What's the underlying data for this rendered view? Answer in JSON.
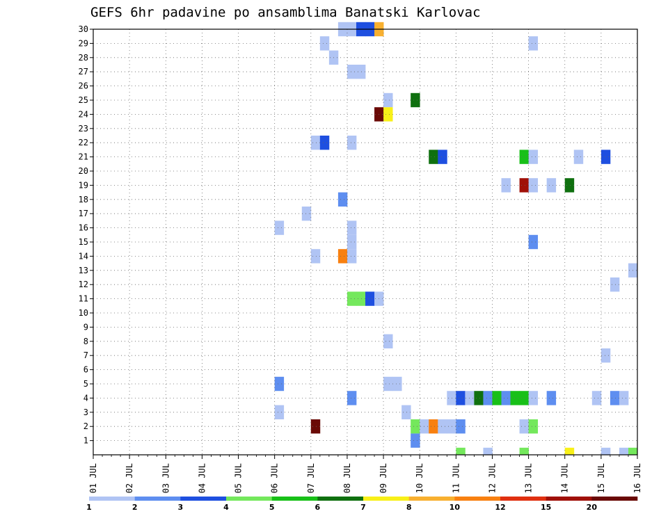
{
  "chart_data": {
    "type": "heatmap",
    "title": "GEFS 6hr padavine po ansamblima Banatski Karlovac",
    "x_tick_labels": [
      "01 JUL",
      "02 JUL",
      "03 JUL",
      "04 JUL",
      "05 JUL",
      "06 JUL",
      "07 JUL",
      "08 JUL",
      "09 JUL",
      "10 JUL",
      "11 JUL",
      "12 JUL",
      "13 JUL",
      "14 JUL",
      "15 JUL",
      "16 JUL"
    ],
    "y_tick_labels": [
      "1",
      "2",
      "3",
      "4",
      "5",
      "6",
      "7",
      "8",
      "9",
      "10",
      "11",
      "12",
      "13",
      "14",
      "15",
      "16",
      "17",
      "18",
      "19",
      "20",
      "21",
      "22",
      "23",
      "24",
      "25",
      "26",
      "27",
      "28",
      "29",
      "30"
    ],
    "x_unit": "6h steps from 01 JUL 00z",
    "grid": true,
    "legend": {
      "position": "bottom",
      "labels": [
        "1",
        "2",
        "3",
        "4",
        "5",
        "6",
        "7",
        "8",
        "10",
        "12",
        "15",
        "20"
      ],
      "colors": [
        "#b0c4f4",
        "#5e8ef0",
        "#1e4fe0",
        "#74e85c",
        "#18c018",
        "#0f700f",
        "#f8f018",
        "#f8b030",
        "#f88010",
        "#e03010",
        "#a01008",
        "#6a0a06"
      ]
    },
    "cells": [
      {
        "m": 30,
        "t": [
          [
            27,
            1
          ],
          [
            28,
            1
          ],
          [
            29,
            3
          ],
          [
            30,
            3
          ],
          [
            31,
            8
          ]
        ]
      },
      {
        "m": 29,
        "t": [
          [
            25,
            1
          ],
          [
            48,
            1
          ]
        ]
      },
      {
        "m": 28,
        "t": [
          [
            26,
            1
          ]
        ]
      },
      {
        "m": 27,
        "t": [
          [
            28,
            1
          ],
          [
            29,
            1
          ]
        ]
      },
      {
        "m": 25,
        "t": [
          [
            32,
            1
          ],
          [
            35,
            6
          ]
        ]
      },
      {
        "m": 24,
        "t": [
          [
            31,
            12
          ],
          [
            32,
            7
          ]
        ]
      },
      {
        "m": 22,
        "t": [
          [
            24,
            1
          ],
          [
            25,
            3
          ],
          [
            28,
            1
          ]
        ]
      },
      {
        "m": 21,
        "t": [
          [
            37,
            6
          ],
          [
            38,
            3
          ],
          [
            47,
            5
          ],
          [
            48,
            1
          ],
          [
            53,
            1
          ],
          [
            56,
            3
          ]
        ]
      },
      {
        "m": 19,
        "t": [
          [
            45,
            1
          ],
          [
            47,
            11
          ],
          [
            48,
            1
          ],
          [
            50,
            1
          ],
          [
            52,
            6
          ]
        ]
      },
      {
        "m": 18,
        "t": [
          [
            27,
            2
          ]
        ]
      },
      {
        "m": 17,
        "t": [
          [
            23,
            1
          ]
        ]
      },
      {
        "m": 16,
        "t": [
          [
            20,
            1
          ],
          [
            28,
            1
          ]
        ]
      },
      {
        "m": 15,
        "t": [
          [
            28,
            1
          ],
          [
            48,
            2
          ]
        ]
      },
      {
        "m": 14,
        "t": [
          [
            24,
            1
          ],
          [
            27,
            9
          ],
          [
            28,
            1
          ]
        ]
      },
      {
        "m": 13,
        "t": [
          [
            59,
            1
          ]
        ]
      },
      {
        "m": 12,
        "t": [
          [
            57,
            1
          ]
        ]
      },
      {
        "m": 11,
        "t": [
          [
            28,
            4
          ],
          [
            29,
            4
          ],
          [
            30,
            3
          ],
          [
            31,
            1
          ]
        ]
      },
      {
        "m": 8,
        "t": [
          [
            32,
            1
          ]
        ]
      },
      {
        "m": 7,
        "t": [
          [
            56,
            1
          ]
        ]
      },
      {
        "m": 5,
        "t": [
          [
            20,
            2
          ],
          [
            32,
            1
          ],
          [
            33,
            1
          ]
        ]
      },
      {
        "m": 4,
        "t": [
          [
            28,
            2
          ],
          [
            39,
            1
          ],
          [
            40,
            3
          ],
          [
            41,
            1
          ],
          [
            42,
            6
          ],
          [
            43,
            2
          ],
          [
            44,
            5
          ],
          [
            45,
            2
          ],
          [
            46,
            5
          ],
          [
            47,
            5
          ],
          [
            48,
            1
          ],
          [
            50,
            2
          ],
          [
            55,
            1
          ],
          [
            57,
            2
          ],
          [
            58,
            1
          ]
        ]
      },
      {
        "m": 3,
        "t": [
          [
            20,
            1
          ],
          [
            34,
            1
          ]
        ]
      },
      {
        "m": 2,
        "t": [
          [
            24,
            12
          ],
          [
            35,
            4
          ],
          [
            36,
            1
          ],
          [
            37,
            9
          ],
          [
            38,
            1
          ],
          [
            39,
            1
          ],
          [
            40,
            2
          ],
          [
            47,
            1
          ],
          [
            48,
            4
          ]
        ]
      },
      {
        "m": 1,
        "t": [
          [
            35,
            2
          ]
        ]
      },
      {
        "m": 0,
        "t": [
          [
            40,
            4
          ],
          [
            43,
            1
          ],
          [
            47,
            4
          ],
          [
            52,
            7
          ],
          [
            56,
            1
          ],
          [
            58,
            1
          ],
          [
            59,
            4
          ]
        ]
      }
    ]
  }
}
